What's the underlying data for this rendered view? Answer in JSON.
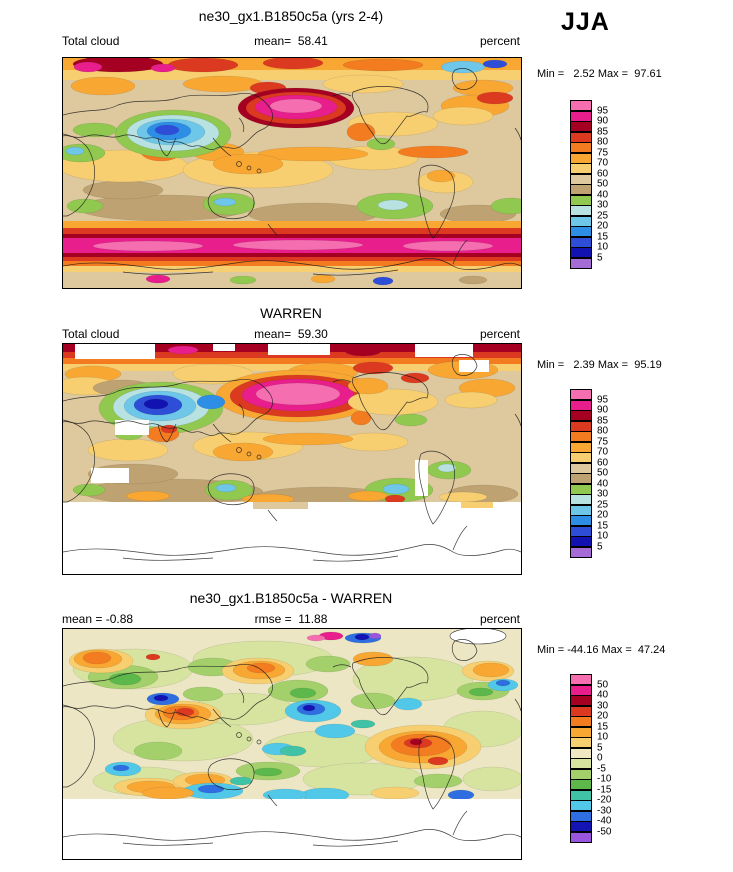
{
  "season": "JJA",
  "panels": [
    {
      "title": "ne30_gx1.B1850c5a (yrs 2-4)",
      "left_label": "Total cloud",
      "center_label": "mean=  58.41",
      "units_label": "percent",
      "minmax_label": "Min =   2.52 Max =  97.61",
      "legend": {
        "labels": [
          "95",
          "90",
          "85",
          "80",
          "75",
          "70",
          "60",
          "50",
          "40",
          "30",
          "25",
          "20",
          "15",
          "10",
          "5"
        ],
        "colors": [
          "#F56EB0",
          "#E81E8C",
          "#A50021",
          "#DC3A20",
          "#F37B20",
          "#F9A733",
          "#F7CF71",
          "#DEC89E",
          "#BFA271",
          "#90C850",
          "#B8E2E2",
          "#6EC6E8",
          "#2E8EE6",
          "#2E4ED8",
          "#1212B0",
          "#A56CD6"
        ]
      }
    },
    {
      "title": "WARREN",
      "left_label": "Total cloud",
      "center_label": "mean=  59.30",
      "units_label": "percent",
      "minmax_label": "Min =   2.39 Max =  95.19",
      "legend": {
        "labels": [
          "95",
          "90",
          "85",
          "80",
          "75",
          "70",
          "60",
          "50",
          "40",
          "30",
          "25",
          "20",
          "15",
          "10",
          "5"
        ],
        "colors": [
          "#F56EB0",
          "#E81E8C",
          "#A50021",
          "#DC3A20",
          "#F37B20",
          "#F9A733",
          "#F7CF71",
          "#DEC89E",
          "#BFA271",
          "#90C850",
          "#B8E2E2",
          "#6EC6E8",
          "#2E8EE6",
          "#2E4ED8",
          "#1212B0",
          "#A56CD6"
        ]
      }
    },
    {
      "title": "ne30_gx1.B1850c5a - WARREN",
      "left_label": "mean = -0.88",
      "center_label": "rmse =  11.88",
      "units_label": "percent",
      "minmax_label": "Min = -44.16 Max =  47.24",
      "legend": {
        "labels": [
          "50",
          "40",
          "30",
          "20",
          "15",
          "10",
          "5",
          "0",
          "-5",
          "-10",
          "-15",
          "-20",
          "-30",
          "-40",
          "-50"
        ],
        "colors": [
          "#F56EB0",
          "#E81E8C",
          "#A50021",
          "#DC3A20",
          "#F37B20",
          "#F9A733",
          "#F7CF71",
          "#EFE8C2",
          "#D7E4A0",
          "#A3D06A",
          "#5DB84B",
          "#3FC2A6",
          "#52C8E8",
          "#2E6EE0",
          "#1414B4",
          "#9955DD"
        ]
      }
    }
  ],
  "chart_data": [
    {
      "type": "heatmap",
      "title": "ne30_gx1.B1850c5a (yrs 2-4)",
      "variable": "Total cloud",
      "units": "percent",
      "season": "JJA",
      "mean": 58.41,
      "min": 2.52,
      "max": 97.61,
      "contour_levels": [
        95,
        90,
        85,
        80,
        75,
        70,
        60,
        50,
        40,
        30,
        25,
        20,
        15,
        10,
        5
      ],
      "palette_top_to_bottom": [
        "#F56EB0",
        "#E81E8C",
        "#A50021",
        "#DC3A20",
        "#F37B20",
        "#F9A733",
        "#F7CF71",
        "#DEC89E",
        "#BFA271",
        "#90C850",
        "#B8E2E2",
        "#6EC6E8",
        "#2E8EE6",
        "#2E4ED8",
        "#1212B0",
        "#A56CD6"
      ]
    },
    {
      "type": "heatmap",
      "title": "WARREN",
      "variable": "Total cloud",
      "units": "percent",
      "season": "JJA",
      "mean": 59.3,
      "min": 2.39,
      "max": 95.19,
      "contour_levels": [
        95,
        90,
        85,
        80,
        75,
        70,
        60,
        50,
        40,
        30,
        25,
        20,
        15,
        10,
        5
      ],
      "palette_top_to_bottom": [
        "#F56EB0",
        "#E81E8C",
        "#A50021",
        "#DC3A20",
        "#F37B20",
        "#F9A733",
        "#F7CF71",
        "#DEC89E",
        "#BFA271",
        "#90C850",
        "#B8E2E2",
        "#6EC6E8",
        "#2E8EE6",
        "#2E4ED8",
        "#1212B0",
        "#A56CD6"
      ]
    },
    {
      "type": "heatmap",
      "title": "ne30_gx1.B1850c5a - WARREN",
      "units": "percent",
      "season": "JJA",
      "mean": -0.88,
      "rmse": 11.88,
      "min": -44.16,
      "max": 47.24,
      "contour_levels": [
        50,
        40,
        30,
        20,
        15,
        10,
        5,
        0,
        -5,
        -10,
        -15,
        -20,
        -30,
        -40,
        -50
      ],
      "palette_top_to_bottom": [
        "#F56EB0",
        "#E81E8C",
        "#A50021",
        "#DC3A20",
        "#F37B20",
        "#F9A733",
        "#F7CF71",
        "#EFE8C2",
        "#D7E4A0",
        "#A3D06A",
        "#5DB84B",
        "#3FC2A6",
        "#52C8E8",
        "#2E6EE0",
        "#1414B4",
        "#9955DD"
      ]
    }
  ]
}
